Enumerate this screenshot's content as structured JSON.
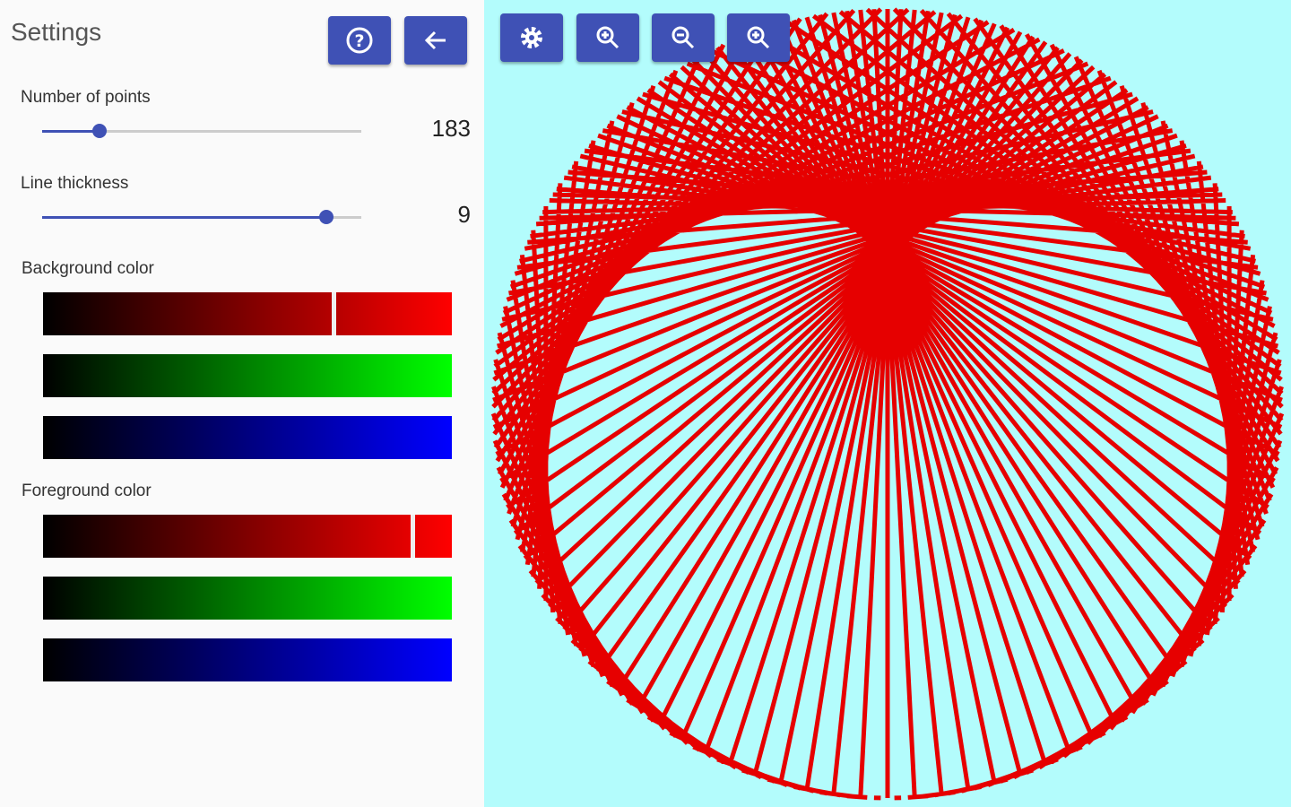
{
  "header": {
    "title": "Settings"
  },
  "settings": {
    "points": {
      "label": "Number of points",
      "value": 183
    },
    "thickness": {
      "label": "Line thickness",
      "value": 9
    },
    "background": {
      "label": "Background color"
    },
    "foreground": {
      "label": "Foreground color"
    }
  }
}
